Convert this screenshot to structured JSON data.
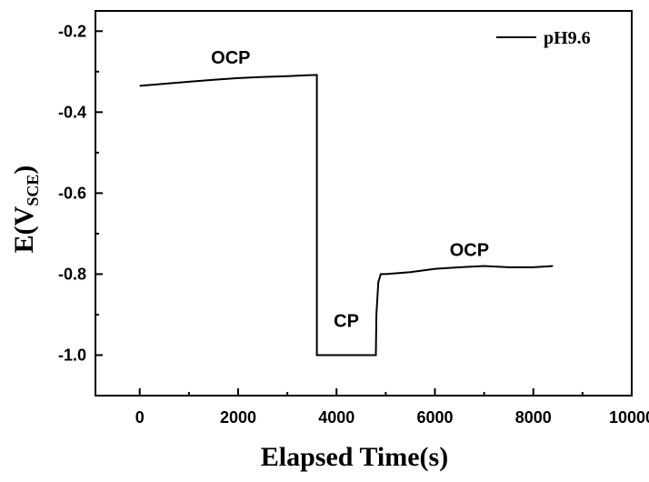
{
  "chart_data": {
    "type": "line",
    "xlabel": "Elapsed Time(s)",
    "ylabel": {
      "main": "E(V",
      "sub": "SCE",
      "close": ")"
    },
    "xlim": [
      -900,
      10000
    ],
    "ylim": [
      -1.1,
      -0.15
    ],
    "x_ticks": [
      0,
      2000,
      4000,
      6000,
      8000,
      10000
    ],
    "y_ticks": [
      -0.2,
      -0.4,
      -0.6,
      -0.8,
      -1.0
    ],
    "x_tick_labels": [
      "0",
      "2000",
      "4000",
      "6000",
      "8000",
      "10000"
    ],
    "y_tick_labels": [
      "-0.2",
      "-0.4",
      "-0.6",
      "-0.8",
      "-1.0"
    ],
    "legend": {
      "position": "top-right",
      "entries": [
        "pH9.6"
      ]
    },
    "grid": false,
    "series": [
      {
        "name": "pH9.6",
        "color": "#000000",
        "x": [
          0,
          500,
          1000,
          1500,
          2000,
          2500,
          3000,
          3400,
          3600,
          3601,
          4000,
          4500,
          4800,
          4810,
          4850,
          4900,
          5000,
          5500,
          6000,
          6500,
          7000,
          7500,
          8000,
          8400
        ],
        "y": [
          -0.335,
          -0.33,
          -0.325,
          -0.32,
          -0.316,
          -0.313,
          -0.311,
          -0.309,
          -0.308,
          -1.0,
          -1.0,
          -1.0,
          -1.0,
          -0.9,
          -0.82,
          -0.8,
          -0.8,
          -0.795,
          -0.787,
          -0.783,
          -0.78,
          -0.783,
          -0.783,
          -0.78
        ]
      }
    ],
    "annotations": [
      {
        "text": "OCP",
        "x": 1850,
        "y": -0.28
      },
      {
        "text": "CP",
        "x": 4200,
        "y": -0.93
      },
      {
        "text": "OCP",
        "x": 6700,
        "y": -0.755
      }
    ]
  }
}
